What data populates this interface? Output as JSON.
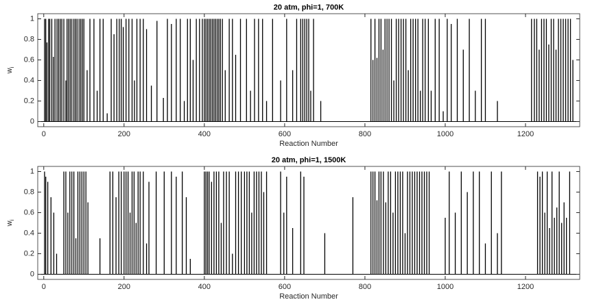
{
  "chart_data": [
    {
      "type": "stem",
      "title": "20 atm, phi=1, 700K",
      "xlabel": "Reaction Number",
      "ylabel": "w",
      "ylabel_subscript": "i",
      "color": "#000000",
      "xlim": [
        -15,
        1335
      ],
      "ylim": [
        -0.05,
        1.05
      ],
      "xticks": [
        0,
        200,
        400,
        600,
        800,
        1000,
        1200
      ],
      "yticks": [
        0,
        0.2,
        0.4,
        0.6,
        0.8,
        1
      ],
      "x": [
        2,
        5,
        8,
        12,
        15,
        20,
        24,
        28,
        33,
        37,
        41,
        45,
        50,
        55,
        58,
        62,
        66,
        70,
        75,
        79,
        83,
        88,
        92,
        96,
        100,
        108,
        115,
        125,
        133,
        140,
        148,
        158,
        168,
        175,
        182,
        188,
        193,
        198,
        205,
        212,
        220,
        226,
        232,
        240,
        248,
        256,
        268,
        282,
        298,
        308,
        318,
        330,
        340,
        350,
        358,
        365,
        372,
        380,
        388,
        395,
        400,
        404,
        408,
        412,
        416,
        420,
        424,
        428,
        432,
        436,
        440,
        445,
        452,
        462,
        470,
        478,
        490,
        505,
        515,
        525,
        535,
        545,
        555,
        570,
        590,
        605,
        620,
        630,
        640,
        645,
        650,
        655,
        660,
        665,
        672,
        690,
        815,
        820,
        825,
        830,
        835,
        840,
        845,
        850,
        855,
        860,
        866,
        872,
        878,
        884,
        890,
        896,
        902,
        908,
        914,
        920,
        926,
        932,
        938,
        944,
        950,
        958,
        965,
        975,
        985,
        995,
        1005,
        1015,
        1030,
        1045,
        1060,
        1075,
        1090,
        1100,
        1130,
        1215,
        1222,
        1228,
        1234,
        1240,
        1246,
        1252,
        1258,
        1264,
        1270,
        1276,
        1282,
        1288,
        1294,
        1300,
        1306,
        1312,
        1318
      ],
      "values": [
        1,
        1,
        0.77,
        1,
        1,
        1,
        0.63,
        1,
        1,
        1,
        1,
        1,
        1,
        0.4,
        1,
        1,
        1,
        1,
        1,
        1,
        1,
        1,
        1,
        1,
        1,
        0.5,
        1,
        1,
        0.3,
        1,
        1,
        0.08,
        1,
        0.85,
        1,
        1,
        1,
        0.92,
        1,
        1,
        1,
        0.4,
        1,
        1,
        1,
        0.9,
        0.35,
        0.98,
        0.23,
        1,
        0.95,
        1,
        1,
        0.2,
        1,
        1,
        0.6,
        1,
        1,
        1,
        1,
        1,
        1,
        1,
        1,
        1,
        1,
        1,
        1,
        1,
        1,
        1,
        0.5,
        1,
        1,
        0.65,
        1,
        1,
        0.3,
        1,
        1,
        1,
        0.2,
        1,
        0.4,
        1,
        0.5,
        1,
        1,
        1,
        1,
        1,
        1,
        0.3,
        1,
        0.2,
        1,
        0.6,
        1,
        0.62,
        1,
        1,
        0.7,
        1,
        1,
        1,
        1,
        0.4,
        1,
        1,
        1,
        1,
        1,
        0.5,
        1,
        1,
        1,
        1,
        0.3,
        1,
        1,
        1,
        0.3,
        1,
        1,
        0.1,
        1,
        0.95,
        1,
        0.7,
        1,
        0.3,
        1,
        1,
        0.2,
        1,
        1,
        1,
        0.7,
        1,
        1,
        1,
        0.75,
        1,
        1,
        0.7,
        1,
        1,
        1,
        1,
        1,
        1,
        0.6
      ]
    },
    {
      "type": "stem",
      "title": "20 atm, phi=1, 1500K",
      "xlabel": "Reaction Number",
      "ylabel": "w",
      "ylabel_subscript": "i",
      "color": "#000000",
      "xlim": [
        -15,
        1335
      ],
      "ylim": [
        -0.05,
        1.05
      ],
      "xticks": [
        0,
        200,
        400,
        600,
        800,
        1000,
        1200
      ],
      "yticks": [
        0,
        0.2,
        0.4,
        0.6,
        0.8,
        1
      ],
      "x": [
        2,
        5,
        10,
        18,
        25,
        32,
        50,
        55,
        60,
        65,
        70,
        75,
        80,
        85,
        90,
        95,
        100,
        105,
        110,
        140,
        165,
        172,
        180,
        187,
        193,
        200,
        205,
        210,
        215,
        220,
        225,
        230,
        235,
        240,
        248,
        256,
        262,
        280,
        300,
        318,
        330,
        345,
        355,
        365,
        400,
        404,
        408,
        412,
        418,
        424,
        430,
        436,
        442,
        448,
        455,
        462,
        470,
        478,
        485,
        492,
        500,
        506,
        512,
        518,
        524,
        530,
        536,
        542,
        548,
        555,
        590,
        598,
        605,
        620,
        640,
        648,
        700,
        770,
        815,
        820,
        825,
        830,
        835,
        840,
        846,
        852,
        858,
        864,
        870,
        876,
        882,
        888,
        894,
        900,
        906,
        912,
        918,
        924,
        930,
        936,
        942,
        948,
        954,
        960,
        1000,
        1010,
        1025,
        1040,
        1055,
        1070,
        1085,
        1100,
        1115,
        1130,
        1140,
        1230,
        1236,
        1242,
        1248,
        1254,
        1260,
        1266,
        1272,
        1278,
        1284,
        1290,
        1296,
        1302,
        1310
      ],
      "values": [
        1,
        0.95,
        0.9,
        0.75,
        0.6,
        0.2,
        1,
        1,
        0.6,
        1,
        1,
        1,
        0.35,
        1,
        1,
        1,
        1,
        1,
        0.7,
        0.35,
        1,
        1,
        0.75,
        1,
        1,
        1,
        1,
        1,
        0.6,
        1,
        1,
        0.5,
        1,
        1,
        1,
        0.3,
        0.9,
        1,
        1,
        1,
        0.95,
        1,
        0.75,
        0.15,
        1,
        1,
        1,
        1,
        0.9,
        1,
        1,
        1,
        0.5,
        1,
        1,
        1,
        0.2,
        1,
        1,
        1,
        1,
        1,
        1,
        0.6,
        1,
        1,
        1,
        1,
        0.8,
        1,
        1,
        0.6,
        0.95,
        0.45,
        1,
        0.95,
        0.4,
        0.75,
        1,
        1,
        1,
        0.72,
        1,
        1,
        1,
        0.7,
        1,
        1,
        0.6,
        1,
        1,
        1,
        1,
        0.4,
        1,
        1,
        1,
        1,
        1,
        1,
        1,
        1,
        1,
        1,
        0.55,
        1,
        0.6,
        1,
        0.8,
        1,
        1,
        0.3,
        1,
        0.4,
        1,
        1,
        0.95,
        1,
        0.6,
        1,
        0.45,
        1,
        0.55,
        0.65,
        1,
        0.5,
        0.7,
        0.55,
        1
      ]
    }
  ]
}
